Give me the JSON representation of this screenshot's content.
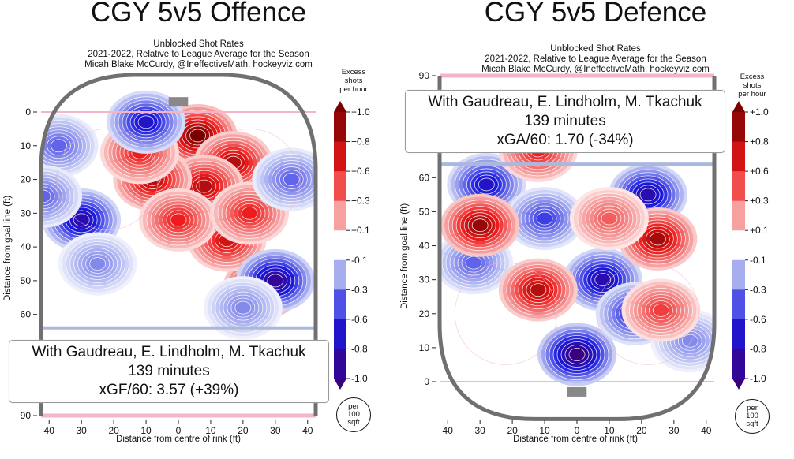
{
  "colors": {
    "max_pos": "#7a0000",
    "pos": "#ee1c1c",
    "light_pos": "#f7b0b0",
    "neutral": "#ffffff",
    "light_neg": "#b9c0f2",
    "neg": "#1a1ae0",
    "max_neg": "#3a0080",
    "rink_line": "#707070",
    "blue_line": "#aab8de",
    "goal_line": "#f5b5c8"
  },
  "colorbar": {
    "title_lines": [
      "Excess",
      "shots",
      "per hour"
    ],
    "ticks": [
      "+1.0",
      "+0.8",
      "+0.6",
      "+0.3",
      "+0.1",
      "-0.1",
      "-0.3",
      "-0.6",
      "-0.8",
      "-1.0"
    ]
  },
  "per_label": [
    "per",
    "100",
    "sqft"
  ],
  "chart_data": [
    {
      "type": "heatmap",
      "title": "CGY 5v5 Offence",
      "subtitle_lines": [
        "Unblocked Shot Rates",
        "2021-2022, Relative to League Average for the Season",
        "Micah Blake McCurdy, @IneffectiveMath, hockeyviz.com"
      ],
      "xlabel": "Distance from centre of rink (ft)",
      "ylabel": "Distance from goal line (ft)",
      "xticks": [
        "40",
        "30",
        "20",
        "10",
        "0",
        "10",
        "20",
        "30",
        "40"
      ],
      "yticks": [
        "0",
        "10",
        "20",
        "30",
        "40",
        "50",
        "60",
        "90"
      ],
      "ylim": [
        0,
        90
      ],
      "orientation": "goal-top",
      "overlay": {
        "line1": "With Gaudreau, E. Lindholm, M. Tkachuk",
        "line2": "139 minutes",
        "line3": "xGF/60: 3.57 (+39%)"
      },
      "blobs": [
        {
          "x": 26,
          "y": 52,
          "v": 1.0
        },
        {
          "x": 6,
          "y": 7,
          "v": 1.0
        },
        {
          "x": 17,
          "y": 15,
          "v": 0.8
        },
        {
          "x": 8,
          "y": 22,
          "v": 0.8
        },
        {
          "x": -8,
          "y": 20,
          "v": 0.8
        },
        {
          "x": 15,
          "y": 38,
          "v": 0.7
        },
        {
          "x": 0,
          "y": 32,
          "v": 0.6
        },
        {
          "x": -12,
          "y": 12,
          "v": 0.6
        },
        {
          "x": 22,
          "y": 30,
          "v": 0.6
        },
        {
          "x": -30,
          "y": 32,
          "v": -0.8
        },
        {
          "x": 30,
          "y": 50,
          "v": -0.9
        },
        {
          "x": -10,
          "y": 3,
          "v": -0.7
        },
        {
          "x": -37,
          "y": 10,
          "v": -0.4
        },
        {
          "x": 35,
          "y": 20,
          "v": -0.4
        },
        {
          "x": -25,
          "y": 45,
          "v": -0.3
        },
        {
          "x": 20,
          "y": 58,
          "v": -0.3
        },
        {
          "x": -42,
          "y": 25,
          "v": -0.4
        }
      ]
    },
    {
      "type": "heatmap",
      "title": "CGY 5v5 Defence",
      "subtitle_lines": [
        "Unblocked Shot Rates",
        "2021-2022, Relative to League Average for the Season",
        "Micah Blake McCurdy, @IneffectiveMath, hockeyviz.com"
      ],
      "xlabel": "Distance from centre of rink (ft)",
      "ylabel": "Distance from goal line (ft)",
      "xticks": [
        "40",
        "30",
        "20",
        "10",
        "0",
        "10",
        "20",
        "30",
        "40"
      ],
      "yticks": [
        "90",
        "60",
        "50",
        "40",
        "30",
        "20",
        "10",
        "0"
      ],
      "ylim": [
        0,
        90
      ],
      "orientation": "goal-bottom",
      "overlay": {
        "line1": "With Gaudreau, E. Lindholm, M. Tkachuk",
        "line2": "139 minutes",
        "line3": "xGA/60: 1.70 (-34%)"
      },
      "blobs": [
        {
          "x": 0,
          "y": 8,
          "v": -1.0
        },
        {
          "x": 8,
          "y": 30,
          "v": -0.8
        },
        {
          "x": 18,
          "y": 20,
          "v": -0.6
        },
        {
          "x": 22,
          "y": 55,
          "v": -0.8
        },
        {
          "x": -28,
          "y": 58,
          "v": -0.7
        },
        {
          "x": -10,
          "y": 48,
          "v": -0.5
        },
        {
          "x": -32,
          "y": 35,
          "v": -0.4
        },
        {
          "x": 35,
          "y": 12,
          "v": -0.3
        },
        {
          "x": -30,
          "y": 46,
          "v": 0.9
        },
        {
          "x": 25,
          "y": 42,
          "v": 0.85
        },
        {
          "x": -12,
          "y": 27,
          "v": 0.8
        },
        {
          "x": -12,
          "y": 68,
          "v": 0.6
        },
        {
          "x": 26,
          "y": 21,
          "v": 0.5
        },
        {
          "x": 10,
          "y": 48,
          "v": 0.4
        }
      ]
    }
  ]
}
